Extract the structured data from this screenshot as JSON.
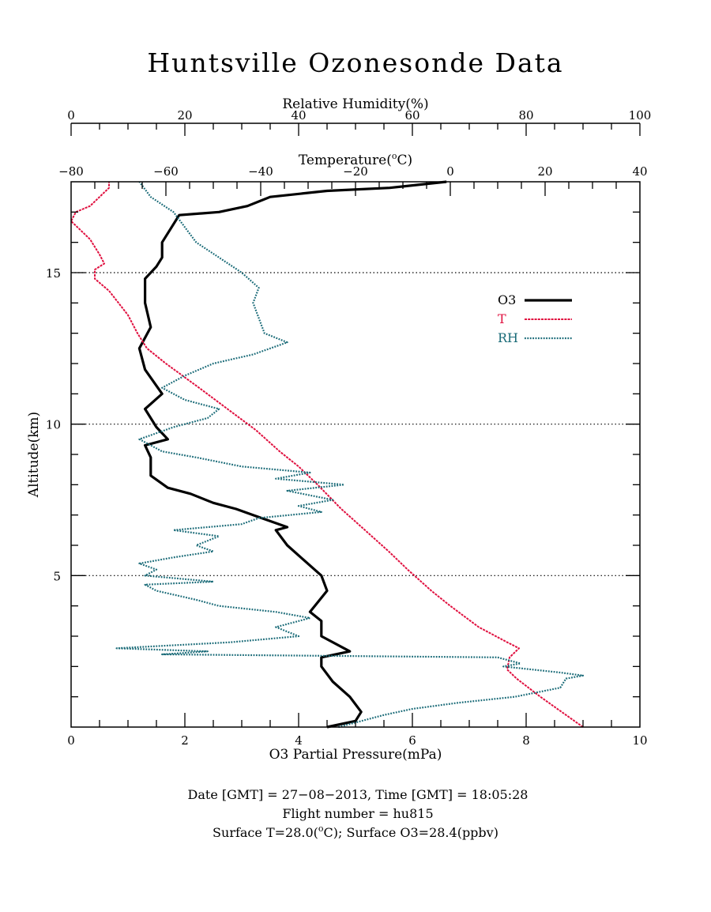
{
  "chart_data": {
    "type": "line",
    "title": "Huntsville Ozonesonde Data",
    "axes": {
      "y": {
        "label": "Altitude(km)",
        "range": [
          0,
          18
        ],
        "ticks": [
          5,
          10,
          15
        ],
        "tick_labels": [
          "5",
          "10",
          "15"
        ]
      },
      "x_bottom": {
        "label": "O3 Partial Pressure(mPa)",
        "range": [
          0,
          10
        ],
        "ticks": [
          0,
          2,
          4,
          6,
          8,
          10
        ],
        "tick_labels": [
          "0",
          "2",
          "4",
          "6",
          "8",
          "10"
        ]
      },
      "x_temp": {
        "label_main": "Temperature(",
        "label_sup": "o",
        "label_end": "C)",
        "range": [
          -80,
          40
        ],
        "ticks": [
          -80,
          -60,
          -40,
          -20,
          0,
          20,
          40
        ],
        "tick_labels": [
          "−80",
          "−60",
          "−40",
          "−20",
          "0",
          "20",
          "40"
        ]
      },
      "x_rh": {
        "label": "Relative Humidity(%)",
        "range": [
          0,
          100
        ],
        "ticks": [
          0,
          20,
          40,
          60,
          80,
          100
        ],
        "tick_labels": [
          "0",
          "20",
          "40",
          "60",
          "80",
          "100"
        ]
      }
    },
    "grid": {
      "horizontal_dotted_at": [
        5,
        10,
        15
      ]
    },
    "legend": {
      "position": "right",
      "entries": [
        {
          "label": "O3",
          "color": "#000000",
          "style": "solid"
        },
        {
          "label": "T",
          "color": "#e0103f",
          "style": "dotted-line"
        },
        {
          "label": "RH",
          "color": "#1a6b78",
          "style": "dotted"
        }
      ]
    },
    "series": [
      {
        "name": "O3",
        "axis": "x_bottom",
        "color": "#000000",
        "points": [
          [
            4.5,
            0.0
          ],
          [
            5.0,
            0.2
          ],
          [
            5.1,
            0.5
          ],
          [
            4.9,
            1.0
          ],
          [
            4.6,
            1.5
          ],
          [
            4.4,
            2.0
          ],
          [
            4.4,
            2.3
          ],
          [
            4.9,
            2.5
          ],
          [
            4.4,
            3.0
          ],
          [
            4.4,
            3.5
          ],
          [
            4.2,
            3.8
          ],
          [
            4.5,
            4.5
          ],
          [
            4.4,
            5.0
          ],
          [
            4.1,
            5.5
          ],
          [
            3.8,
            6.0
          ],
          [
            3.6,
            6.5
          ],
          [
            3.8,
            6.6
          ],
          [
            3.2,
            7.0
          ],
          [
            2.9,
            7.2
          ],
          [
            2.5,
            7.4
          ],
          [
            2.1,
            7.7
          ],
          [
            1.7,
            7.9
          ],
          [
            1.4,
            8.3
          ],
          [
            1.4,
            8.9
          ],
          [
            1.3,
            9.3
          ],
          [
            1.7,
            9.5
          ],
          [
            1.5,
            9.9
          ],
          [
            1.3,
            10.5
          ],
          [
            1.6,
            11.0
          ],
          [
            1.3,
            11.8
          ],
          [
            1.2,
            12.5
          ],
          [
            1.4,
            13.2
          ],
          [
            1.3,
            14.0
          ],
          [
            1.3,
            14.8
          ],
          [
            1.5,
            15.2
          ],
          [
            1.6,
            15.5
          ],
          [
            1.6,
            16.0
          ],
          [
            1.8,
            16.6
          ],
          [
            1.9,
            16.9
          ],
          [
            2.6,
            17.0
          ],
          [
            3.1,
            17.2
          ],
          [
            3.5,
            17.5
          ],
          [
            4.5,
            17.7
          ],
          [
            5.6,
            17.8
          ],
          [
            6.6,
            18.0
          ]
        ]
      },
      {
        "name": "T",
        "axis": "x_temp",
        "color": "#e0103f",
        "points": [
          [
            28.0,
            0.0
          ],
          [
            19.0,
            1.0
          ],
          [
            14.0,
            1.6
          ],
          [
            12.0,
            1.9
          ],
          [
            12.5,
            2.3
          ],
          [
            14.5,
            2.6
          ],
          [
            12.0,
            2.8
          ],
          [
            6.0,
            3.3
          ],
          [
            0.0,
            4.0
          ],
          [
            -4.0,
            4.5
          ],
          [
            -9.0,
            5.2
          ],
          [
            -13.0,
            5.8
          ],
          [
            -18.0,
            6.5
          ],
          [
            -23.0,
            7.2
          ],
          [
            -28.0,
            8.0
          ],
          [
            -32.0,
            8.6
          ],
          [
            -36.0,
            9.1
          ],
          [
            -41.0,
            9.8
          ],
          [
            -47.0,
            10.5
          ],
          [
            -53.0,
            11.2
          ],
          [
            -60.0,
            12.0
          ],
          [
            -64.0,
            12.5
          ],
          [
            -66.0,
            13.0
          ],
          [
            -68.0,
            13.6
          ],
          [
            -70.0,
            14.0
          ],
          [
            -72.0,
            14.4
          ],
          [
            -75.0,
            14.8
          ],
          [
            -75.0,
            15.1
          ],
          [
            -73.0,
            15.3
          ],
          [
            -74.0,
            15.6
          ],
          [
            -76.0,
            16.1
          ],
          [
            -78.0,
            16.4
          ],
          [
            -80.0,
            16.7
          ],
          [
            -79.0,
            17.0
          ],
          [
            -76.0,
            17.2
          ],
          [
            -74.0,
            17.5
          ],
          [
            -72.0,
            17.8
          ],
          [
            -72.0,
            18.0
          ]
        ]
      },
      {
        "name": "RH",
        "axis": "x_rh",
        "color": "#1a6b78",
        "points": [
          [
            47.0,
            0.0
          ],
          [
            55.0,
            0.4
          ],
          [
            60.0,
            0.6
          ],
          [
            68.0,
            0.8
          ],
          [
            78.0,
            1.0
          ],
          [
            86.0,
            1.3
          ],
          [
            87.0,
            1.6
          ],
          [
            90.0,
            1.7
          ],
          [
            86.0,
            1.8
          ],
          [
            76.0,
            2.0
          ],
          [
            79.0,
            2.1
          ],
          [
            75.0,
            2.3
          ],
          [
            16.0,
            2.4
          ],
          [
            24.0,
            2.5
          ],
          [
            8.0,
            2.6
          ],
          [
            28.0,
            2.8
          ],
          [
            40.0,
            3.0
          ],
          [
            36.0,
            3.3
          ],
          [
            42.0,
            3.6
          ],
          [
            36.0,
            3.8
          ],
          [
            26.0,
            4.0
          ],
          [
            22.0,
            4.2
          ],
          [
            15.0,
            4.5
          ],
          [
            13.0,
            4.7
          ],
          [
            25.0,
            4.8
          ],
          [
            13.0,
            5.0
          ],
          [
            15.0,
            5.2
          ],
          [
            12.0,
            5.4
          ],
          [
            18.0,
            5.6
          ],
          [
            25.0,
            5.8
          ],
          [
            22.0,
            6.0
          ],
          [
            26.0,
            6.3
          ],
          [
            18.0,
            6.5
          ],
          [
            30.0,
            6.7
          ],
          [
            33.0,
            6.9
          ],
          [
            44.0,
            7.1
          ],
          [
            40.0,
            7.3
          ],
          [
            46.0,
            7.5
          ],
          [
            38.0,
            7.8
          ],
          [
            48.0,
            8.0
          ],
          [
            36.0,
            8.2
          ],
          [
            42.0,
            8.4
          ],
          [
            30.0,
            8.6
          ],
          [
            22.0,
            8.9
          ],
          [
            16.0,
            9.1
          ],
          [
            12.0,
            9.5
          ],
          [
            18.0,
            9.9
          ],
          [
            24.0,
            10.2
          ],
          [
            26.0,
            10.5
          ],
          [
            20.0,
            10.8
          ],
          [
            16.0,
            11.2
          ],
          [
            20.0,
            11.6
          ],
          [
            25.0,
            12.0
          ],
          [
            32.0,
            12.3
          ],
          [
            38.0,
            12.7
          ],
          [
            34.0,
            13.0
          ],
          [
            33.0,
            13.5
          ],
          [
            32.0,
            14.0
          ],
          [
            33.0,
            14.5
          ],
          [
            30.0,
            15.0
          ],
          [
            26.0,
            15.5
          ],
          [
            22.0,
            16.0
          ],
          [
            20.0,
            16.5
          ],
          [
            18.0,
            17.0
          ],
          [
            14.0,
            17.5
          ],
          [
            12.0,
            18.0
          ]
        ]
      }
    ],
    "footer_lines": [
      "Date [GMT] = 27−08−2013,  Time [GMT] = 18:05:28",
      "Flight number = hu815"
    ],
    "footer_line3": {
      "pre": "Surface T=28.0(",
      "sup": "o",
      "post": "C); Surface O3=28.4(ppbv)"
    }
  }
}
